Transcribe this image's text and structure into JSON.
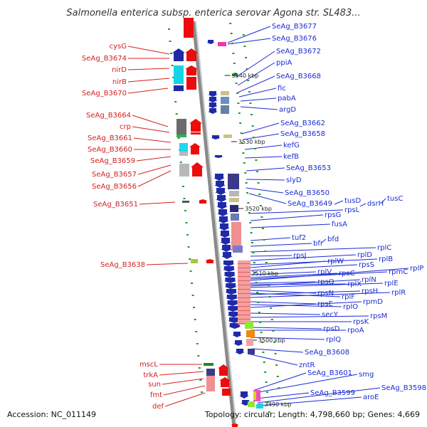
{
  "title": "Salmonella enterica subsp. enterica serovar Agona str. SL483...",
  "footer": {
    "accession": "Accession: NC_011149",
    "summary": "Topology: circular; Length: 4,798,660 bp; Genes: 4,669"
  },
  "colors": {
    "left_labels": "#d42020",
    "right_labels": "#1a2bd6",
    "backbone": "#8a8a8a",
    "dots": "#1f9a2a"
  },
  "kbp_markers": [
    "3540 kbp",
    "3530 kbp",
    "3520 kbp",
    "3510 kbp",
    "3500 kbp",
    "3490 kbp"
  ],
  "left_labels": [
    "cysG",
    "SeAg_B3674",
    "nirD",
    "nirB",
    "SeAg_B3670",
    "SeAg_B3664",
    "crp",
    "SeAg_B3661",
    "SeAg_B3660",
    "SeAg_B3659",
    "SeAg_B3657",
    "SeAg_B3656",
    "SeAg_B3651",
    "SeAg_B3638",
    "mscL",
    "trkA",
    "sun",
    "fmt",
    "def"
  ],
  "right_labels": [
    "SeAg_B3677",
    "SeAg_B3676",
    "SeAg_B3672",
    "ppiA",
    "SeAg_B3668",
    "fic",
    "pabA",
    "argD",
    "SeAg_B3662",
    "SeAg_B3658",
    "kefG",
    "kefB",
    "SeAg_B3653",
    "slyD",
    "SeAg_B3650",
    "SeAg_B3649",
    "tusD",
    "dsrH",
    "tusC",
    "rpsL",
    "rpsG",
    "fusA",
    "tuf2",
    "bfd",
    "bfr",
    "rplC",
    "rpsJ",
    "rplD",
    "rplB",
    "rplW",
    "rpsS",
    "rplV",
    "rpsC",
    "rpmC",
    "rplP",
    "rpsQ",
    "rplX",
    "rplN",
    "rplE",
    "rpsN",
    "rplF",
    "rpsH",
    "rplR",
    "rpsE",
    "rplO",
    "rpmD",
    "secY",
    "rpsM",
    "rpsK",
    "rpsD",
    "rpoA",
    "rplQ",
    "SeAg_B3608",
    "zntR",
    "SeAg_B3601",
    "smg",
    "SeAg_B3599",
    "SeAg_B3598",
    "aroE"
  ]
}
